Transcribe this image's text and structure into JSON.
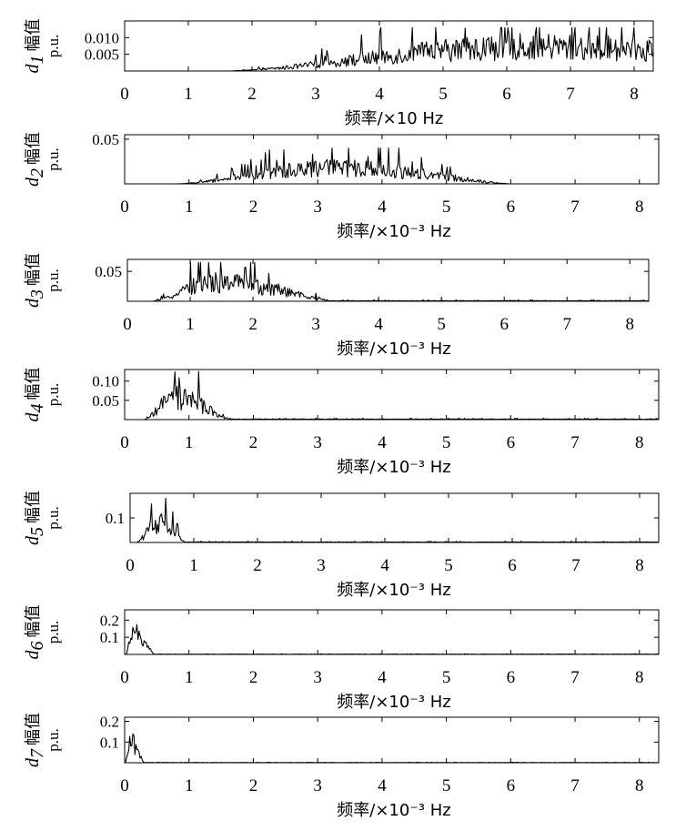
{
  "chart_data": [
    {
      "type": "line",
      "ylabel": {
        "var": "d",
        "sub": "1",
        "cn": "幅值",
        "unit": "p.u."
      },
      "xlabel": "频率/×10 Hz",
      "xlim": [
        0,
        8.3
      ],
      "xticks": [
        "0",
        "1",
        "2",
        "3",
        "4",
        "5",
        "6",
        "7",
        "8"
      ],
      "ylim": [
        0,
        0.015
      ],
      "yticks": [
        {
          "v": 0.005,
          "label": "0.005"
        },
        {
          "v": 0.01,
          "label": "0.010"
        }
      ],
      "envelope": {
        "start": 1.6,
        "peak": 6.4,
        "end": 8.3,
        "peak_amp": 0.009,
        "tail_amp": 0.008,
        "spike": 0.013
      },
      "series": [
        {
          "values_desc": "broadband noise rising from ~1.6 to peaks ~0.013 near 5–7.5"
        }
      ]
    },
    {
      "type": "line",
      "ylabel": {
        "var": "d",
        "sub": "2",
        "cn": "幅值",
        "unit": "p.u."
      },
      "xlabel": "频率/×10⁻³ Hz",
      "xlim": [
        0,
        8.3
      ],
      "xticks": [
        "0",
        "1",
        "2",
        "3",
        "4",
        "5",
        "6",
        "7",
        "8"
      ],
      "ylim": [
        0,
        0.055
      ],
      "yticks": [
        {
          "v": 0.05,
          "label": "0.05"
        }
      ],
      "envelope": {
        "start": 0.8,
        "peak": 3.2,
        "end": 6.0,
        "peak_amp": 0.022,
        "tail_amp": 0.0,
        "spike": 0.04
      },
      "series": [
        {
          "values_desc": "bump from ~1 to ~5.8, peak ~0.04 near 3.2"
        }
      ]
    },
    {
      "type": "line",
      "ylabel": {
        "var": "d",
        "sub": "3",
        "cn": "幅值",
        "unit": "p.u."
      },
      "xlabel": "频率/×10⁻³ Hz",
      "xlim": [
        0,
        8.3
      ],
      "xticks": [
        "0",
        "1",
        "2",
        "3",
        "4",
        "5",
        "6",
        "7",
        "8"
      ],
      "ylim": [
        0,
        0.07
      ],
      "yticks": [
        {
          "v": 0.05,
          "label": "0.05"
        }
      ],
      "envelope": {
        "start": 0.4,
        "peak": 1.4,
        "end": 3.2,
        "peak_amp": 0.04,
        "tail_amp": 0.002,
        "spike": 0.065
      },
      "series": [
        {
          "values_desc": "bump from ~0.5 to ~3, peak ~0.065 near 1.4"
        }
      ]
    },
    {
      "type": "line",
      "ylabel": {
        "var": "d",
        "sub": "4",
        "cn": "幅值",
        "unit": "p.u."
      },
      "xlabel": "频率/×10⁻³ Hz",
      "xlim": [
        0,
        8.3
      ],
      "xticks": [
        "0",
        "1",
        "2",
        "3",
        "4",
        "5",
        "6",
        "7",
        "8"
      ],
      "ylim": [
        0,
        0.13
      ],
      "yticks": [
        {
          "v": 0.05,
          "label": "0.05"
        },
        {
          "v": 0.1,
          "label": "0.10"
        }
      ],
      "envelope": {
        "start": 0.3,
        "peak": 0.8,
        "end": 1.6,
        "peak_amp": 0.07,
        "tail_amp": 0.003,
        "spike": 0.125
      },
      "series": [
        {
          "values_desc": "bump from ~0.3 to ~1.5, peak ~0.12 near 0.7"
        }
      ]
    },
    {
      "type": "line",
      "ylabel": {
        "var": "d",
        "sub": "5",
        "cn": "幅值",
        "unit": "p.u."
      },
      "xlabel": "频率/×10⁻³ Hz",
      "xlim": [
        0,
        8.3
      ],
      "xticks": [
        "0",
        "1",
        "2",
        "3",
        "4",
        "5",
        "6",
        "7",
        "8"
      ],
      "ylim": [
        0,
        0.2
      ],
      "yticks": [
        {
          "v": 0.1,
          "label": "0.1"
        }
      ],
      "envelope": {
        "start": 0.1,
        "peak": 0.45,
        "end": 0.85,
        "peak_amp": 0.1,
        "tail_amp": 0.004,
        "spike": 0.18
      },
      "series": [
        {
          "values_desc": "bump from ~0.1 to ~0.8, peak ~0.18 near 0.45"
        }
      ]
    },
    {
      "type": "line",
      "ylabel": {
        "var": "d",
        "sub": "6",
        "cn": "幅值",
        "unit": "p.u."
      },
      "xlabel": "频率/×10⁻³ Hz",
      "xlim": [
        0,
        8.3
      ],
      "xticks": [
        "0",
        "1",
        "2",
        "3",
        "4",
        "5",
        "6",
        "7",
        "8"
      ],
      "ylim": [
        0,
        0.26
      ],
      "yticks": [
        {
          "v": 0.1,
          "label": "0.1"
        },
        {
          "v": 0.2,
          "label": "0.2"
        }
      ],
      "envelope": {
        "start": 0.02,
        "peak": 0.18,
        "end": 0.45,
        "peak_amp": 0.16,
        "tail_amp": 0.003,
        "spike": 0.23
      },
      "series": [
        {
          "values_desc": "peak ~0.23 near 0.18, decays by ~0.45"
        }
      ]
    },
    {
      "type": "line",
      "ylabel": {
        "var": "d",
        "sub": "7",
        "cn": "幅值",
        "unit": "p.u."
      },
      "xlabel": "频率/×10⁻³ Hz",
      "xlim": [
        0,
        8.3
      ],
      "xticks": [
        "0",
        "1",
        "2",
        "3",
        "4",
        "5",
        "6",
        "7",
        "8"
      ],
      "ylim": [
        0,
        0.22
      ],
      "yticks": [
        {
          "v": 0.1,
          "label": "0.1"
        },
        {
          "v": 0.2,
          "label": "0.2"
        }
      ],
      "envelope": {
        "start": 0.01,
        "peak": 0.1,
        "end": 0.3,
        "peak_amp": 0.12,
        "tail_amp": 0.002,
        "spike": 0.16
      },
      "series": [
        {
          "values_desc": "peak ~0.16 near 0.1, decays by ~0.3"
        }
      ]
    }
  ]
}
